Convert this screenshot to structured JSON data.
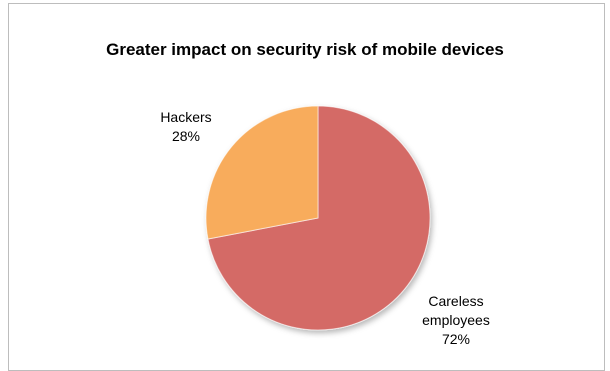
{
  "chart_data": {
    "type": "pie",
    "title": "Greater impact on security risk of mobile devices",
    "slices": [
      {
        "label_lines": [
          "Careless",
          "employees"
        ],
        "percent_label": "72%",
        "value": 72,
        "color": "#d46a66"
      },
      {
        "label_lines": [
          "Hackers"
        ],
        "percent_label": "28%",
        "value": 28,
        "color": "#f8ac5c"
      }
    ],
    "legend": "none",
    "labels": "outside-with-percent"
  }
}
